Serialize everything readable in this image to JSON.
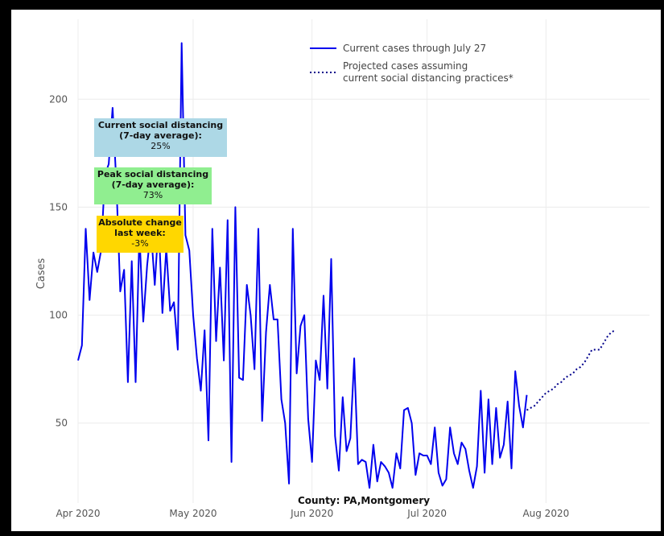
{
  "chart_data": {
    "type": "line",
    "title": "",
    "xlabel": "",
    "ylabel": "Cases",
    "footer": "County: PA,Montgomery",
    "x_ticks": [
      "Apr 2020",
      "May 2020",
      "Jun 2020",
      "Jul 2020",
      "Aug 2020"
    ],
    "y_ticks": [
      50,
      100,
      150,
      200
    ],
    "xlim": [
      "2020-04-01",
      "2020-08-28"
    ],
    "ylim": [
      13,
      237
    ],
    "grid": true,
    "legend_position": "top-center",
    "series": [
      {
        "name": "Current cases through July 27",
        "style": "solid",
        "color": "#0000ee",
        "start_date": "2020-04-01",
        "values": [
          79,
          86,
          140,
          107,
          129,
          120,
          130,
          165,
          170,
          196,
          160,
          111,
          121,
          69,
          125,
          69,
          138,
          97,
          123,
          140,
          114,
          143,
          101,
          131,
          102,
          106,
          84,
          226,
          137,
          130,
          100,
          80,
          65,
          93,
          42,
          140,
          88,
          122,
          79,
          144,
          32,
          150,
          71,
          70,
          114,
          100,
          75,
          140,
          51,
          92,
          114,
          98,
          98,
          61,
          50,
          22,
          140,
          73,
          95,
          100,
          52,
          32,
          79,
          70,
          109,
          66,
          126,
          44,
          28,
          62,
          37,
          43,
          80,
          31,
          33,
          32,
          20,
          40,
          23,
          32,
          30,
          27,
          20,
          36,
          29,
          56,
          57,
          50,
          26,
          36,
          35,
          35,
          31,
          48,
          27,
          21,
          24,
          48,
          36,
          31,
          41,
          38,
          28,
          20,
          30,
          65,
          27,
          61,
          31,
          57,
          34,
          40,
          60,
          29,
          74,
          58,
          48,
          63
        ]
      },
      {
        "name": "Projected cases assuming current social distancing practices*",
        "style": "dotted",
        "color": "#00008b",
        "start_date": "2020-07-27",
        "values": [
          56,
          57,
          58,
          60,
          62,
          64,
          65,
          66,
          68,
          69,
          71,
          72,
          73,
          75,
          76,
          78,
          81,
          84,
          84,
          84,
          87,
          90,
          92,
          93
        ]
      }
    ]
  },
  "annotations": [
    {
      "title": "Current social distancing (7-day average):",
      "value": "25%",
      "color": "#add8e6"
    },
    {
      "title": "Peak social distancing (7-day average):",
      "value": "73%",
      "color": "#90ee90"
    },
    {
      "title": "Absolute change last week:",
      "value": "-3%",
      "color": "#ffd700"
    }
  ]
}
